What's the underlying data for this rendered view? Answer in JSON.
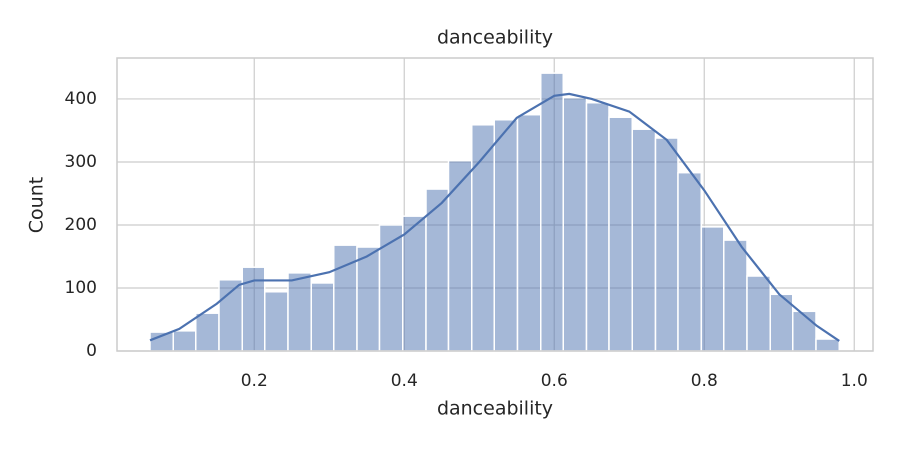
{
  "chart_data": {
    "type": "histogram",
    "title": "danceability",
    "x_label": "danceability",
    "y_label": "Count",
    "bins": [
      0.061,
      0.092,
      0.122,
      0.153,
      0.184,
      0.214,
      0.245,
      0.276,
      0.306,
      0.337,
      0.367,
      0.398,
      0.429,
      0.459,
      0.49,
      0.52,
      0.551,
      0.582,
      0.612,
      0.643,
      0.673,
      0.704,
      0.735,
      0.765,
      0.796,
      0.826,
      0.857,
      0.888,
      0.918,
      0.949,
      0.98
    ],
    "counts": [
      30,
      32,
      60,
      113,
      133,
      94,
      124,
      108,
      168,
      165,
      200,
      214,
      257,
      302,
      359,
      367,
      375,
      441,
      402,
      394,
      371,
      352,
      338,
      283,
      197,
      176,
      119,
      90,
      63,
      19
    ],
    "color": "#4c72b0",
    "kde": {
      "x": [
        0.061,
        0.1,
        0.15,
        0.18,
        0.2,
        0.25,
        0.3,
        0.35,
        0.4,
        0.45,
        0.5,
        0.55,
        0.6,
        0.62,
        0.65,
        0.7,
        0.75,
        0.8,
        0.85,
        0.9,
        0.95,
        0.98
      ],
      "values": [
        17,
        35,
        75,
        105,
        112,
        112,
        125,
        150,
        185,
        235,
        300,
        370,
        405,
        408,
        400,
        380,
        335,
        255,
        165,
        90,
        40,
        16
      ],
      "color": "#4c72b0"
    },
    "xlim": [
      0.017,
      1.025
    ],
    "ylim": [
      0,
      465
    ],
    "xticks": [
      0.2,
      0.4,
      0.6,
      0.8,
      {
        "value": 1,
        "label": "1.0"
      }
    ],
    "yticks": [
      0,
      100,
      200,
      300,
      400
    ],
    "grid": true
  }
}
